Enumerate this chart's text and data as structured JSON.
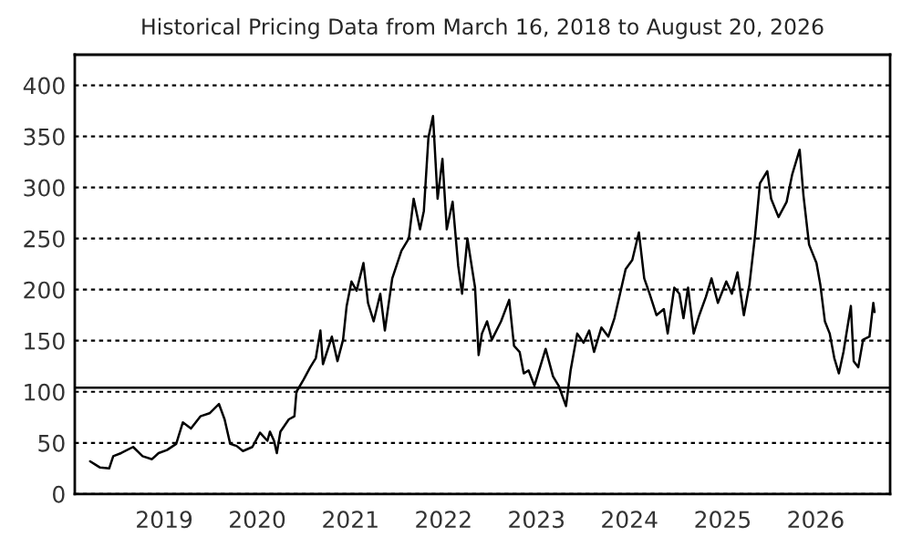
{
  "chart_data": {
    "type": "line",
    "title": "Historical Pricing Data from March 16, 2018 to August 20, 2026",
    "x": [
      "2018-03-16",
      "2018-04-10",
      "2018-04-23",
      "2018-05-30",
      "2018-06-15",
      "2018-07-16",
      "2018-09-01",
      "2018-10-08",
      "2018-11-14",
      "2018-12-10",
      "2019-01-12",
      "2019-02-17",
      "2019-03-15",
      "2019-04-16",
      "2019-05-23",
      "2019-06-28",
      "2019-08-04",
      "2019-08-26",
      "2019-09-17",
      "2019-10-12",
      "2019-11-06",
      "2019-12-13",
      "2020-01-12",
      "2020-02-10",
      "2020-02-20",
      "2020-03-07",
      "2020-03-18",
      "2020-04-01",
      "2020-05-04",
      "2020-05-26",
      "2020-06-03",
      "2020-07-01",
      "2020-07-27",
      "2020-08-18",
      "2020-09-05",
      "2020-09-15",
      "2020-10-20",
      "2020-11-11",
      "2020-12-03",
      "2020-12-17",
      "2021-01-05",
      "2021-01-25",
      "2021-02-21",
      "2021-03-11",
      "2021-04-02",
      "2021-04-28",
      "2021-05-16",
      "2021-06-14",
      "2021-07-20",
      "2021-08-18",
      "2021-09-06",
      "2021-10-01",
      "2021-10-16",
      "2021-11-03",
      "2021-11-21",
      "2021-12-09",
      "2021-12-28",
      "2022-01-14",
      "2022-02-06",
      "2022-02-28",
      "2022-03-15",
      "2022-04-05",
      "2022-05-05",
      "2022-05-19",
      "2022-06-01",
      "2022-06-21",
      "2022-07-10",
      "2022-08-15",
      "2022-09-16",
      "2022-10-05",
      "2022-10-27",
      "2022-11-12",
      "2022-12-01",
      "2022-12-24",
      "2023-02-06",
      "2023-03-07",
      "2023-03-29",
      "2023-04-27",
      "2023-05-15",
      "2023-06-10",
      "2023-07-05",
      "2023-07-27",
      "2023-08-15",
      "2023-09-13",
      "2023-10-10",
      "2023-11-03",
      "2023-11-25",
      "2023-12-17",
      "2024-01-12",
      "2024-02-07",
      "2024-02-28",
      "2024-03-20",
      "2024-04-16",
      "2024-05-15",
      "2024-05-30",
      "2024-06-25",
      "2024-07-15",
      "2024-07-31",
      "2024-08-18",
      "2024-09-09",
      "2024-10-01",
      "2024-10-27",
      "2024-11-18",
      "2024-12-13",
      "2025-01-15",
      "2025-02-06",
      "2025-02-28",
      "2025-03-25",
      "2025-04-16",
      "2025-05-08",
      "2025-05-27",
      "2025-06-25",
      "2025-07-10",
      "2025-08-08",
      "2025-09-09",
      "2025-10-01",
      "2025-10-30",
      "2025-11-14",
      "2025-12-06",
      "2026-01-04",
      "2026-01-19",
      "2026-02-06",
      "2026-02-25",
      "2026-03-15",
      "2026-04-02",
      "2026-04-20",
      "2026-05-19",
      "2026-05-30",
      "2026-06-17",
      "2026-07-06",
      "2026-07-31",
      "2026-08-15",
      "2026-08-20"
    ],
    "series": [
      {
        "color": "#000000",
        "values": [
          32,
          28,
          26,
          25,
          37,
          40,
          46,
          37,
          34,
          40,
          43,
          49,
          70,
          64,
          76,
          79,
          88,
          73,
          49,
          47,
          42,
          46,
          60,
          52,
          61,
          52,
          40,
          61,
          73,
          76,
          100,
          112,
          124,
          133,
          160,
          127,
          154,
          130,
          151,
          184,
          208,
          199,
          226,
          187,
          169,
          196,
          160,
          211,
          238,
          250,
          289,
          259,
          277,
          349,
          370,
          289,
          328,
          259,
          286,
          223,
          196,
          250,
          202,
          136,
          157,
          169,
          151,
          169,
          190,
          145,
          139,
          118,
          121,
          106,
          142,
          115,
          106,
          86,
          121,
          157,
          148,
          160,
          139,
          163,
          154,
          172,
          196,
          220,
          229,
          256,
          211,
          196,
          175,
          181,
          157,
          202,
          196,
          172,
          202,
          157,
          175,
          193,
          211,
          187,
          208,
          196,
          217,
          175,
          205,
          253,
          304,
          316,
          289,
          271,
          286,
          313,
          337,
          292,
          244,
          226,
          205,
          169,
          157,
          133,
          118,
          139,
          184,
          130,
          124,
          151,
          154,
          187,
          178
        ]
      }
    ],
    "xlim": [
      "2018-01-15",
      "2026-10-20"
    ],
    "xticks": [
      "2019",
      "2020",
      "2021",
      "2022",
      "2023",
      "2024",
      "2025",
      "2026"
    ],
    "ylim": [
      0,
      430
    ],
    "yticks": [
      0,
      50,
      100,
      150,
      200,
      250,
      300,
      350,
      400
    ],
    "ref_lines": [
      {
        "axis": "y",
        "value": 104,
        "color": "#000000",
        "line_style": "solid"
      }
    ],
    "grid": "y",
    "line_style": "solid",
    "marker": "none",
    "legend": false
  }
}
